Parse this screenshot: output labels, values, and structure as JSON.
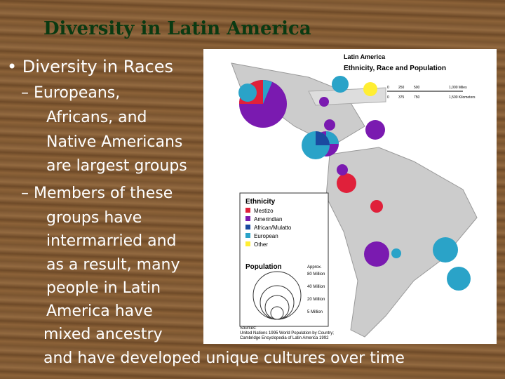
{
  "title": "Diversity in Latin America",
  "bullets": [
    {
      "text": "• Diversity in Races",
      "sub": [
        {
          "lines": [
            "– Europeans,",
            "Africans, and",
            "Native Americans",
            "are largest groups"
          ]
        },
        {
          "lines": [
            "– Members of these",
            "groups have",
            "intermarried and",
            "as a result, many",
            "people in Latin",
            "America have",
            "mixed ancestry",
            "and have developed unique cultures over time"
          ]
        }
      ]
    }
  ],
  "map": {
    "title": "Latin America",
    "subtitle": "Ethnicity, Race and Population",
    "scale_miles": [
      "0",
      "250",
      "500",
      "1,000 Miles"
    ],
    "scale_km": [
      "0",
      "375",
      "750",
      "1,500 Kilometers"
    ],
    "legend": {
      "title": "Ethnicity",
      "items": [
        "Mestizo",
        "Amerindian",
        "African/Mulatto",
        "European",
        "Other"
      ]
    },
    "population": {
      "title": "Population",
      "note": "Approx.",
      "sizes": [
        "80 Million",
        "40 Million",
        "20 Million",
        "5 Million"
      ]
    },
    "sources": [
      "Sources:",
      "United Nations 1995 World Population by Country;",
      "Cambridge Encyclopedia of Latin America 1992"
    ]
  }
}
